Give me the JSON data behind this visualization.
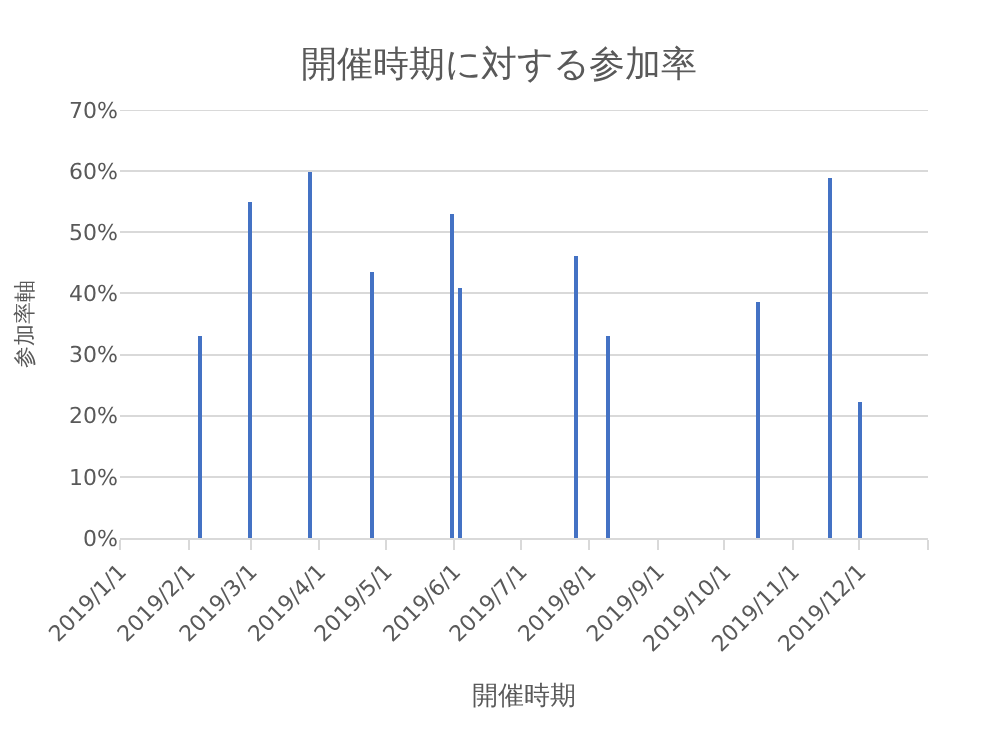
{
  "chart_data": {
    "type": "bar",
    "title": "開催時期に対する参加率",
    "xlabel": "開催時期",
    "ylabel": "参加率軸",
    "x": [
      "2019-02-06",
      "2019-03-01",
      "2019-03-28",
      "2019-04-25",
      "2019-05-31",
      "2019-06-04",
      "2019-07-26",
      "2019-08-10",
      "2019-10-16",
      "2019-11-18",
      "2019-12-01"
    ],
    "series": [
      {
        "color": "#4472c4",
        "values": [
          33.2,
          55,
          60,
          43.4,
          52.9,
          40.9,
          46,
          33.2,
          38.7,
          58.8,
          22.3
        ]
      }
    ],
    "xlim": [
      "2019-01-01",
      "2020-01-01"
    ],
    "xticks": [
      {
        "value": "2019-01-01",
        "label": "2019/1/1"
      },
      {
        "value": "2019-02-01",
        "label": "2019/2/1"
      },
      {
        "value": "2019-03-01",
        "label": "2019/3/1"
      },
      {
        "value": "2019-04-01",
        "label": "2019/4/1"
      },
      {
        "value": "2019-05-01",
        "label": "2019/5/1"
      },
      {
        "value": "2019-06-01",
        "label": "2019/6/1"
      },
      {
        "value": "2019-07-01",
        "label": "2019/7/1"
      },
      {
        "value": "2019-08-01",
        "label": "2019/8/1"
      },
      {
        "value": "2019-09-01",
        "label": "2019/9/1"
      },
      {
        "value": "2019-10-01",
        "label": "2019/10/1"
      },
      {
        "value": "2019-11-01",
        "label": "2019/11/1"
      },
      {
        "value": "2019-12-01",
        "label": "2019/12/1"
      },
      {
        "value": "2020-01-01",
        "label": null
      }
    ],
    "ylim": [
      0,
      70
    ],
    "yticks": [
      {
        "value": 0,
        "label": "0%"
      },
      {
        "value": 10,
        "label": "10%"
      },
      {
        "value": 20,
        "label": "20%"
      },
      {
        "value": 30,
        "label": "30%"
      },
      {
        "value": 40,
        "label": "40%"
      },
      {
        "value": 50,
        "label": "50%"
      },
      {
        "value": 60,
        "label": "60%"
      },
      {
        "value": 70,
        "label": "70%"
      }
    ],
    "grid": "y"
  }
}
